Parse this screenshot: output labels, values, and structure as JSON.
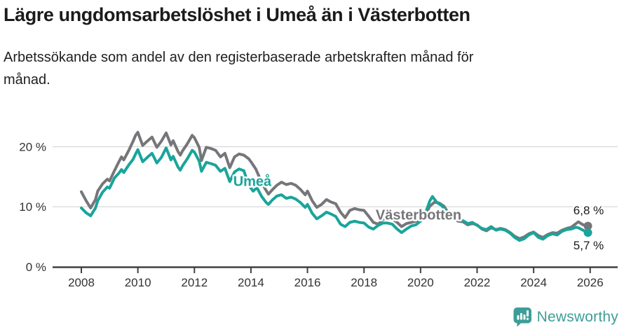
{
  "title": "Lägre ungdomsarbetslöshet i Umeå än i Västerbotten",
  "subtitle": "Arbetssökande som andel av den registerbaserade arbetskraften månad för månad.",
  "subtitle_lines": [
    "Arbetssökande som andel av den registerbaserade arbetskraften månad för",
    "månad."
  ],
  "footer": {
    "brand": "Newsworthy",
    "logo_icon": "speech-bubble-bar-chart-icon"
  },
  "colors": {
    "umea": "#1aa49b",
    "vasterbotten": "#76767a",
    "grid": "#d9d9d9",
    "axis": "#404040",
    "tick_text": "#333333",
    "text": "#1b1b1b",
    "brand": "#3d9e98"
  },
  "chart_data": {
    "type": "line",
    "title": "Lägre ungdomsarbetslöshet i Umeå än i Västerbotten",
    "xlabel": "",
    "ylabel": "",
    "unit": "%",
    "grid": "horizontal",
    "legend_position": "inline-labels",
    "x_axis": {
      "ticks": [
        2008,
        2010,
        2012,
        2014,
        2016,
        2018,
        2020,
        2022,
        2024,
        2026
      ]
    },
    "y_axis": {
      "ticks": [
        {
          "value": 0,
          "label": "0 %"
        },
        {
          "value": 10,
          "label": "10 %"
        },
        {
          "value": 20,
          "label": "20 %"
        }
      ],
      "range": [
        0,
        23.5
      ]
    },
    "x_range": [
      2007.0,
      2026.97
    ],
    "annotations": [
      {
        "text": "Umeå",
        "x": 2014.05,
        "y": 14.3,
        "color": "#1aa49b"
      },
      {
        "text": "Västerbotten",
        "x": 2019.93,
        "y": 8.7,
        "color": "#76767a"
      }
    ],
    "series": [
      {
        "name": "Västerbotten",
        "color": "#76767a",
        "end_label": "6,8 %",
        "end_value": 6.8,
        "points": [
          [
            2008.0,
            12.5
          ],
          [
            2008.17,
            11.0
          ],
          [
            2008.33,
            9.8
          ],
          [
            2008.5,
            11.2
          ],
          [
            2008.58,
            12.6
          ],
          [
            2008.75,
            13.8
          ],
          [
            2008.92,
            14.6
          ],
          [
            2009.0,
            14.3
          ],
          [
            2009.17,
            16.0
          ],
          [
            2009.33,
            17.5
          ],
          [
            2009.42,
            18.3
          ],
          [
            2009.5,
            17.8
          ],
          [
            2009.67,
            19.3
          ],
          [
            2009.83,
            20.9
          ],
          [
            2009.92,
            21.9
          ],
          [
            2010.0,
            22.4
          ],
          [
            2010.17,
            20.2
          ],
          [
            2010.33,
            20.9
          ],
          [
            2010.5,
            21.6
          ],
          [
            2010.67,
            19.9
          ],
          [
            2010.83,
            20.9
          ],
          [
            2011.0,
            22.3
          ],
          [
            2011.17,
            20.3
          ],
          [
            2011.25,
            21.0
          ],
          [
            2011.42,
            19.2
          ],
          [
            2011.5,
            18.6
          ],
          [
            2011.58,
            19.3
          ],
          [
            2011.75,
            20.5
          ],
          [
            2011.92,
            21.9
          ],
          [
            2012.0,
            21.5
          ],
          [
            2012.17,
            19.9
          ],
          [
            2012.25,
            17.7
          ],
          [
            2012.42,
            19.9
          ],
          [
            2012.58,
            19.7
          ],
          [
            2012.75,
            19.4
          ],
          [
            2012.92,
            18.3
          ],
          [
            2013.08,
            18.9
          ],
          [
            2013.25,
            16.5
          ],
          [
            2013.42,
            18.3
          ],
          [
            2013.58,
            18.8
          ],
          [
            2013.75,
            18.6
          ],
          [
            2013.92,
            18.0
          ],
          [
            2014.0,
            17.5
          ],
          [
            2014.17,
            16.3
          ],
          [
            2014.33,
            14.6
          ],
          [
            2014.5,
            13.0
          ],
          [
            2014.62,
            12.1
          ],
          [
            2014.75,
            12.8
          ],
          [
            2014.92,
            13.6
          ],
          [
            2015.08,
            14.1
          ],
          [
            2015.25,
            13.7
          ],
          [
            2015.42,
            13.9
          ],
          [
            2015.58,
            13.6
          ],
          [
            2015.75,
            12.9
          ],
          [
            2015.92,
            12.0
          ],
          [
            2016.0,
            12.6
          ],
          [
            2016.17,
            11.0
          ],
          [
            2016.33,
            9.9
          ],
          [
            2016.5,
            10.4
          ],
          [
            2016.67,
            11.2
          ],
          [
            2016.83,
            10.8
          ],
          [
            2017.0,
            10.5
          ],
          [
            2017.17,
            9.1
          ],
          [
            2017.33,
            8.2
          ],
          [
            2017.5,
            9.4
          ],
          [
            2017.67,
            9.7
          ],
          [
            2017.83,
            9.5
          ],
          [
            2018.0,
            9.4
          ],
          [
            2018.17,
            8.4
          ],
          [
            2018.33,
            7.4
          ],
          [
            2018.5,
            7.1
          ],
          [
            2018.67,
            7.9
          ],
          [
            2018.83,
            8.1
          ],
          [
            2019.0,
            8.0
          ],
          [
            2019.17,
            7.4
          ],
          [
            2019.33,
            6.7
          ],
          [
            2019.5,
            7.2
          ],
          [
            2019.67,
            7.4
          ],
          [
            2019.83,
            7.6
          ],
          [
            2020.0,
            7.9
          ],
          [
            2020.17,
            8.7
          ],
          [
            2020.33,
            10.1
          ],
          [
            2020.5,
            10.8
          ],
          [
            2020.67,
            10.6
          ],
          [
            2020.83,
            10.1
          ],
          [
            2021.0,
            8.8
          ],
          [
            2021.17,
            8.1
          ],
          [
            2021.33,
            7.6
          ],
          [
            2021.5,
            7.5
          ],
          [
            2021.67,
            7.0
          ],
          [
            2021.83,
            7.2
          ],
          [
            2022.0,
            7.0
          ],
          [
            2022.17,
            6.3
          ],
          [
            2022.33,
            6.0
          ],
          [
            2022.5,
            6.5
          ],
          [
            2022.67,
            6.2
          ],
          [
            2022.83,
            6.4
          ],
          [
            2023.0,
            6.2
          ],
          [
            2023.17,
            5.7
          ],
          [
            2023.33,
            5.1
          ],
          [
            2023.5,
            4.7
          ],
          [
            2023.67,
            5.0
          ],
          [
            2023.83,
            5.5
          ],
          [
            2024.0,
            5.8
          ],
          [
            2024.17,
            5.2
          ],
          [
            2024.33,
            4.9
          ],
          [
            2024.5,
            5.4
          ],
          [
            2024.67,
            5.7
          ],
          [
            2024.83,
            5.6
          ],
          [
            2025.0,
            6.1
          ],
          [
            2025.17,
            6.4
          ],
          [
            2025.33,
            6.6
          ],
          [
            2025.5,
            7.2
          ],
          [
            2025.58,
            7.5
          ],
          [
            2025.75,
            7.0
          ],
          [
            2025.92,
            6.8
          ]
        ]
      },
      {
        "name": "Umeå",
        "color": "#1aa49b",
        "end_label": "5,7 %",
        "end_value": 5.7,
        "points": [
          [
            2008.0,
            9.8
          ],
          [
            2008.17,
            9.0
          ],
          [
            2008.33,
            8.5
          ],
          [
            2008.5,
            9.8
          ],
          [
            2008.58,
            11.0
          ],
          [
            2008.75,
            12.4
          ],
          [
            2008.92,
            13.3
          ],
          [
            2009.0,
            13.1
          ],
          [
            2009.17,
            14.8
          ],
          [
            2009.33,
            15.6
          ],
          [
            2009.42,
            16.2
          ],
          [
            2009.5,
            15.7
          ],
          [
            2009.67,
            16.9
          ],
          [
            2009.83,
            17.9
          ],
          [
            2009.92,
            18.8
          ],
          [
            2010.0,
            19.5
          ],
          [
            2010.17,
            17.5
          ],
          [
            2010.33,
            18.2
          ],
          [
            2010.5,
            18.9
          ],
          [
            2010.67,
            17.3
          ],
          [
            2010.83,
            18.2
          ],
          [
            2011.0,
            19.8
          ],
          [
            2011.17,
            17.8
          ],
          [
            2011.25,
            18.4
          ],
          [
            2011.42,
            16.6
          ],
          [
            2011.5,
            16.1
          ],
          [
            2011.58,
            16.8
          ],
          [
            2011.75,
            18.0
          ],
          [
            2011.92,
            19.4
          ],
          [
            2012.0,
            19.1
          ],
          [
            2012.17,
            17.6
          ],
          [
            2012.25,
            15.9
          ],
          [
            2012.42,
            17.4
          ],
          [
            2012.58,
            17.2
          ],
          [
            2012.75,
            16.9
          ],
          [
            2012.92,
            15.9
          ],
          [
            2013.08,
            16.4
          ],
          [
            2013.25,
            14.2
          ],
          [
            2013.42,
            15.8
          ],
          [
            2013.58,
            16.3
          ],
          [
            2013.75,
            16.0
          ],
          [
            2013.92,
            13.6
          ],
          [
            2014.08,
            12.6
          ],
          [
            2014.21,
            13.2
          ],
          [
            2014.38,
            11.7
          ],
          [
            2014.54,
            10.7
          ],
          [
            2014.62,
            10.4
          ],
          [
            2014.75,
            11.1
          ],
          [
            2014.92,
            11.8
          ],
          [
            2015.08,
            12.0
          ],
          [
            2015.25,
            11.4
          ],
          [
            2015.42,
            11.6
          ],
          [
            2015.58,
            11.3
          ],
          [
            2015.75,
            10.7
          ],
          [
            2015.92,
            9.9
          ],
          [
            2016.0,
            10.4
          ],
          [
            2016.17,
            8.9
          ],
          [
            2016.33,
            8.0
          ],
          [
            2016.5,
            8.5
          ],
          [
            2016.67,
            9.1
          ],
          [
            2016.83,
            8.8
          ],
          [
            2017.0,
            8.4
          ],
          [
            2017.17,
            7.1
          ],
          [
            2017.33,
            6.7
          ],
          [
            2017.5,
            7.4
          ],
          [
            2017.67,
            7.6
          ],
          [
            2017.83,
            7.4
          ],
          [
            2018.0,
            7.3
          ],
          [
            2018.17,
            6.6
          ],
          [
            2018.33,
            6.3
          ],
          [
            2018.5,
            6.9
          ],
          [
            2018.67,
            7.3
          ],
          [
            2018.83,
            7.3
          ],
          [
            2019.0,
            7.1
          ],
          [
            2019.17,
            6.3
          ],
          [
            2019.33,
            5.7
          ],
          [
            2019.5,
            6.3
          ],
          [
            2019.67,
            6.8
          ],
          [
            2019.83,
            7.0
          ],
          [
            2020.0,
            7.6
          ],
          [
            2020.17,
            8.9
          ],
          [
            2020.33,
            11.0
          ],
          [
            2020.42,
            11.7
          ],
          [
            2020.58,
            10.7
          ],
          [
            2020.75,
            10.2
          ],
          [
            2020.92,
            9.2
          ],
          [
            2021.0,
            8.6
          ],
          [
            2021.17,
            8.0
          ],
          [
            2021.33,
            7.8
          ],
          [
            2021.5,
            7.7
          ],
          [
            2021.67,
            7.2
          ],
          [
            2021.83,
            7.4
          ],
          [
            2022.0,
            6.9
          ],
          [
            2022.17,
            6.4
          ],
          [
            2022.33,
            6.2
          ],
          [
            2022.5,
            6.7
          ],
          [
            2022.67,
            6.1
          ],
          [
            2022.83,
            6.3
          ],
          [
            2023.0,
            6.1
          ],
          [
            2023.17,
            5.6
          ],
          [
            2023.33,
            4.9
          ],
          [
            2023.5,
            4.4
          ],
          [
            2023.67,
            4.7
          ],
          [
            2023.83,
            5.3
          ],
          [
            2024.0,
            5.7
          ],
          [
            2024.17,
            4.9
          ],
          [
            2024.33,
            4.6
          ],
          [
            2024.5,
            5.2
          ],
          [
            2024.67,
            5.5
          ],
          [
            2024.83,
            5.3
          ],
          [
            2025.0,
            5.9
          ],
          [
            2025.17,
            6.2
          ],
          [
            2025.33,
            6.3
          ],
          [
            2025.5,
            6.6
          ],
          [
            2025.58,
            6.5
          ],
          [
            2025.75,
            6.1
          ],
          [
            2025.92,
            5.7
          ]
        ]
      }
    ]
  }
}
